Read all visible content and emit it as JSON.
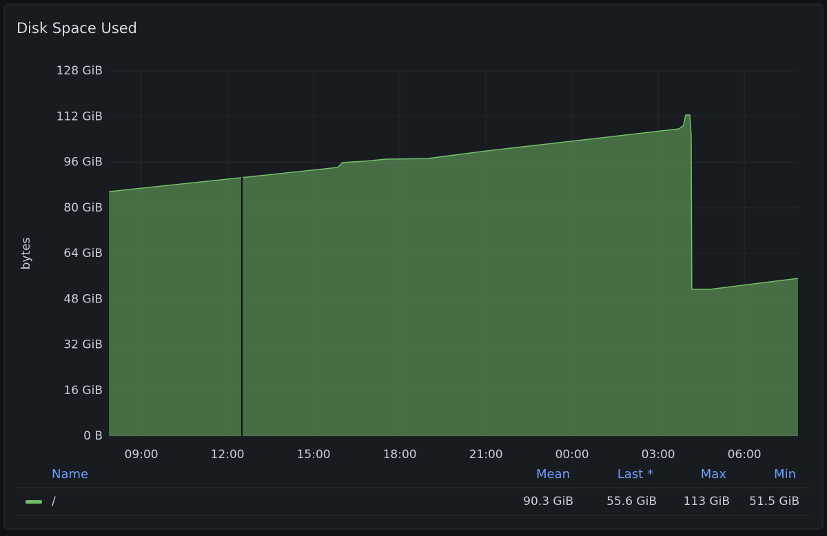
{
  "chart_data": {
    "type": "area",
    "title": "Disk Space Used",
    "y_label": "bytes",
    "x": [
      7.87,
      12.48,
      15.84,
      16.01,
      16.8,
      17.52,
      18.96,
      20.88,
      24.0,
      27.72,
      27.88,
      27.96,
      28.1,
      28.15,
      28.17,
      28.84,
      31.87
    ],
    "series": [
      {
        "name": "/",
        "color": "#73bf69",
        "values": [
          85.7,
          90.6,
          94.2,
          95.9,
          96.4,
          97.1,
          97.3,
          99.8,
          103.4,
          107.7,
          108.9,
          112.6,
          112.6,
          105.1,
          51.5,
          51.5,
          55.3
        ],
        "stats": [
          "90.3 GiB",
          "55.6 GiB",
          "113 GiB",
          "51.5 GiB"
        ]
      }
    ],
    "legend_headers": [
      "Name",
      "Mean",
      "Last *",
      "Max",
      "Min"
    ],
    "xlim": [
      7.87,
      31.87
    ],
    "xticks": [
      {
        "value": 9,
        "label": "09:00"
      },
      {
        "value": 12,
        "label": "12:00"
      },
      {
        "value": 15,
        "label": "15:00"
      },
      {
        "value": 18,
        "label": "18:00"
      },
      {
        "value": 21,
        "label": "21:00"
      },
      {
        "value": 24,
        "label": "00:00"
      },
      {
        "value": 27,
        "label": "03:00"
      },
      {
        "value": 30,
        "label": "06:00"
      }
    ],
    "ylim": [
      0,
      128
    ],
    "yticks": [
      {
        "value": 0,
        "label": "0 B"
      },
      {
        "value": 16,
        "label": "16 GiB"
      },
      {
        "value": 32,
        "label": "32 GiB"
      },
      {
        "value": 48,
        "label": "48 GiB"
      },
      {
        "value": 64,
        "label": "64 GiB"
      },
      {
        "value": 80,
        "label": "80 GiB"
      },
      {
        "value": 96,
        "label": "96 GiB"
      },
      {
        "value": 112,
        "label": "112 GiB"
      },
      {
        "value": 128,
        "label": "128 GiB"
      }
    ],
    "grid": true
  }
}
